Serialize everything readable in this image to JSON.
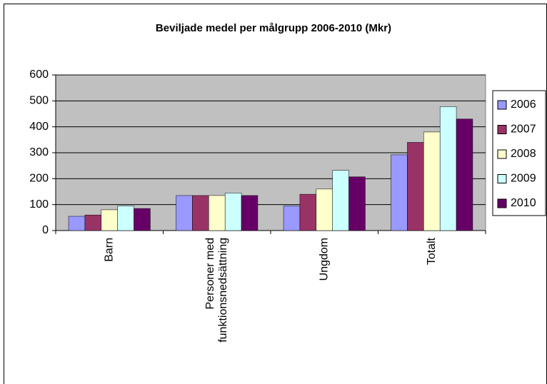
{
  "chart_data": {
    "type": "bar",
    "title": "Beviljade medel per målgrupp 2006-2010 (Mkr)",
    "categories": [
      "Barn",
      "Personer med funktionsnedsättning",
      "Ungdom",
      "Totalt"
    ],
    "series": [
      {
        "name": "2006",
        "color": "#9999ff",
        "values": [
          55,
          135,
          95,
          292
        ]
      },
      {
        "name": "2007",
        "color": "#993366",
        "values": [
          60,
          135,
          140,
          340
        ]
      },
      {
        "name": "2008",
        "color": "#ffffcc",
        "values": [
          80,
          135,
          160,
          380
        ]
      },
      {
        "name": "2009",
        "color": "#ccffff",
        "values": [
          95,
          145,
          232,
          478
        ]
      },
      {
        "name": "2010",
        "color": "#660066",
        "values": [
          85,
          135,
          207,
          430
        ]
      }
    ],
    "ylim": [
      0,
      600
    ],
    "yticks": [
      0,
      100,
      200,
      300,
      400,
      500,
      600
    ],
    "grid": true,
    "legend": "right"
  }
}
